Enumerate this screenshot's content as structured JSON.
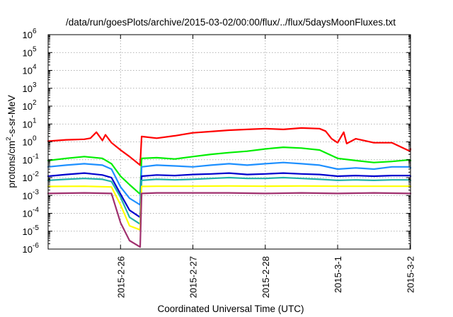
{
  "chart_data": {
    "type": "line",
    "title": "/data/run/goesPlots/archive/2015-03-02/00:00/flux/../flux/5daysMoonFluxes.txt",
    "xlabel": "Coordinated Universal Time (UTC)",
    "ylabel": "protons/cm²-s-sr-MeV",
    "ylabel_parts": {
      "pre": "protons/cm",
      "sup": "2",
      "post": "-s-sr-MeV"
    },
    "xlim": [
      "2015-02-25 00:00",
      "2015-03-02 00:10"
    ],
    "ylim": [
      1e-06,
      1000000.0
    ],
    "yscale": "log",
    "grid": true,
    "x_ticks": [
      {
        "value": "2015-02-26 00:00",
        "label": "2015-2-26"
      },
      {
        "value": "2015-02-27 00:00",
        "label": "2015-2-27"
      },
      {
        "value": "2015-02-28 00:00",
        "label": "2015-2-28"
      },
      {
        "value": "2015-03-01 00:00",
        "label": "2015-3-1"
      },
      {
        "value": "2015-03-02 00:00",
        "label": "2015-3-2"
      }
    ],
    "y_ticks": [
      {
        "value": 1e-06,
        "base": "10",
        "exp": "-6"
      },
      {
        "value": 1e-05,
        "base": "10",
        "exp": "-5"
      },
      {
        "value": 0.0001,
        "base": "10",
        "exp": "-4"
      },
      {
        "value": 0.001,
        "base": "10",
        "exp": "-3"
      },
      {
        "value": 0.01,
        "base": "10",
        "exp": "-2"
      },
      {
        "value": 0.1,
        "base": "10",
        "exp": "-1"
      },
      {
        "value": 1.0,
        "base": "10",
        "exp": "0"
      },
      {
        "value": 10.0,
        "base": "10",
        "exp": "1"
      },
      {
        "value": 100.0,
        "base": "10",
        "exp": "2"
      },
      {
        "value": 1000.0,
        "base": "10",
        "exp": "3"
      },
      {
        "value": 10000.0,
        "base": "10",
        "exp": "4"
      },
      {
        "value": 100000.0,
        "base": "10",
        "exp": "5"
      },
      {
        "value": 1000000.0,
        "base": "10",
        "exp": "6"
      }
    ],
    "series": [
      {
        "color": "#ff0000",
        "x": [
          "2015-02-25 00:00",
          "2015-02-25 06:00",
          "2015-02-25 12:00",
          "2015-02-25 14:00",
          "2015-02-25 16:00",
          "2015-02-25 18:00",
          "2015-02-25 19:00",
          "2015-02-25 21:00",
          "2015-02-26 00:00",
          "2015-02-26 03:00",
          "2015-02-26 06:30",
          "2015-02-26 07:00",
          "2015-02-26 12:00",
          "2015-02-26 18:00",
          "2015-02-27 00:00",
          "2015-02-27 06:00",
          "2015-02-27 12:00",
          "2015-02-27 18:00",
          "2015-02-28 00:00",
          "2015-02-28 06:00",
          "2015-02-28 12:00",
          "2015-02-28 18:00",
          "2015-02-28 20:00",
          "2015-02-28 22:00",
          "2015-03-01 00:00",
          "2015-03-01 02:00",
          "2015-03-01 03:00",
          "2015-03-01 06:00",
          "2015-03-01 12:00",
          "2015-03-01 18:00",
          "2015-03-02 00:00",
          "2015-03-02 00:10"
        ],
        "y": [
          1.1,
          1.3,
          1.4,
          1.6,
          3.5,
          1.2,
          2.5,
          0.9,
          0.35,
          0.15,
          0.05,
          2.0,
          1.6,
          2.2,
          3.2,
          3.8,
          4.5,
          5.0,
          5.5,
          5.0,
          6.0,
          5.5,
          4.0,
          1.5,
          0.9,
          3.5,
          0.8,
          1.5,
          0.9,
          0.9,
          0.3,
          0.4
        ]
      },
      {
        "color": "#00ee00",
        "x": [
          "2015-02-25 00:00",
          "2015-02-25 06:00",
          "2015-02-25 12:00",
          "2015-02-25 18:00",
          "2015-02-25 21:00",
          "2015-02-26 00:00",
          "2015-02-26 03:00",
          "2015-02-26 06:30",
          "2015-02-26 07:00",
          "2015-02-26 12:00",
          "2015-02-26 18:00",
          "2015-02-27 00:00",
          "2015-02-27 06:00",
          "2015-02-27 12:00",
          "2015-02-27 18:00",
          "2015-02-28 00:00",
          "2015-02-28 06:00",
          "2015-02-28 12:00",
          "2015-02-28 18:00",
          "2015-03-01 00:00",
          "2015-03-01 06:00",
          "2015-03-01 12:00",
          "2015-03-01 18:00",
          "2015-03-02 00:00",
          "2015-03-02 00:10"
        ],
        "y": [
          0.09,
          0.12,
          0.15,
          0.12,
          0.06,
          0.012,
          0.004,
          0.0012,
          0.12,
          0.13,
          0.11,
          0.15,
          0.2,
          0.25,
          0.3,
          0.4,
          0.5,
          0.45,
          0.35,
          0.12,
          0.09,
          0.07,
          0.08,
          0.1,
          0.09
        ]
      },
      {
        "color": "#1e90ff",
        "x": [
          "2015-02-25 00:00",
          "2015-02-25 06:00",
          "2015-02-25 12:00",
          "2015-02-25 18:00",
          "2015-02-25 21:00",
          "2015-02-26 00:00",
          "2015-02-26 03:00",
          "2015-02-26 06:30",
          "2015-02-26 07:00",
          "2015-02-26 12:00",
          "2015-02-26 18:00",
          "2015-02-27 00:00",
          "2015-02-27 06:00",
          "2015-02-27 12:00",
          "2015-02-27 18:00",
          "2015-02-28 00:00",
          "2015-02-28 06:00",
          "2015-02-28 12:00",
          "2015-02-28 18:00",
          "2015-03-01 00:00",
          "2015-03-01 06:00",
          "2015-03-01 12:00",
          "2015-03-01 18:00",
          "2015-03-02 00:00",
          "2015-03-02 00:10"
        ],
        "y": [
          0.04,
          0.05,
          0.06,
          0.05,
          0.03,
          0.003,
          0.0007,
          0.0003,
          0.04,
          0.05,
          0.045,
          0.04,
          0.05,
          0.06,
          0.05,
          0.06,
          0.07,
          0.06,
          0.05,
          0.03,
          0.035,
          0.03,
          0.04,
          0.04,
          0.035
        ]
      },
      {
        "color": "#0000cd",
        "x": [
          "2015-02-25 00:00",
          "2015-02-25 06:00",
          "2015-02-25 12:00",
          "2015-02-25 18:00",
          "2015-02-25 21:00",
          "2015-02-26 00:00",
          "2015-02-26 03:00",
          "2015-02-26 06:30",
          "2015-02-26 07:00",
          "2015-02-26 12:00",
          "2015-02-26 18:00",
          "2015-02-27 00:00",
          "2015-02-27 06:00",
          "2015-02-27 12:00",
          "2015-02-27 18:00",
          "2015-02-28 00:00",
          "2015-02-28 06:00",
          "2015-02-28 12:00",
          "2015-02-28 18:00",
          "2015-03-01 00:00",
          "2015-03-01 06:00",
          "2015-03-01 12:00",
          "2015-03-01 18:00",
          "2015-03-02 00:00",
          "2015-03-02 00:10"
        ],
        "y": [
          0.012,
          0.015,
          0.018,
          0.014,
          0.01,
          0.0012,
          0.00015,
          6e-05,
          0.012,
          0.014,
          0.013,
          0.015,
          0.016,
          0.018,
          0.015,
          0.016,
          0.018,
          0.016,
          0.015,
          0.012,
          0.013,
          0.012,
          0.013,
          0.013,
          0.012
        ]
      },
      {
        "color": "#20b2aa",
        "x": [
          "2015-02-25 00:00",
          "2015-02-25 06:00",
          "2015-02-25 12:00",
          "2015-02-25 18:00",
          "2015-02-25 21:00",
          "2015-02-26 00:00",
          "2015-02-26 03:00",
          "2015-02-26 06:30",
          "2015-02-26 07:00",
          "2015-02-26 12:00",
          "2015-02-26 18:00",
          "2015-02-27 00:00",
          "2015-02-27 06:00",
          "2015-02-27 12:00",
          "2015-02-27 18:00",
          "2015-02-28 00:00",
          "2015-02-28 06:00",
          "2015-02-28 12:00",
          "2015-02-28 18:00",
          "2015-03-01 00:00",
          "2015-03-01 06:00",
          "2015-03-01 12:00",
          "2015-03-01 18:00",
          "2015-03-02 00:00",
          "2015-03-02 00:10"
        ],
        "y": [
          0.007,
          0.008,
          0.009,
          0.008,
          0.006,
          0.0008,
          6e-05,
          2.5e-05,
          0.007,
          0.008,
          0.0075,
          0.008,
          0.009,
          0.01,
          0.009,
          0.009,
          0.01,
          0.009,
          0.008,
          0.007,
          0.0075,
          0.007,
          0.0075,
          0.0075,
          0.007
        ]
      },
      {
        "color": "#ffff00",
        "x": [
          "2015-02-25 00:00",
          "2015-02-25 12:00",
          "2015-02-25 21:00",
          "2015-02-26 00:00",
          "2015-02-26 03:00",
          "2015-02-26 06:30",
          "2015-02-26 07:00",
          "2015-02-26 12:00",
          "2015-02-27 00:00",
          "2015-02-27 12:00",
          "2015-02-28 00:00",
          "2015-02-28 12:00",
          "2015-03-01 00:00",
          "2015-03-01 12:00",
          "2015-03-02 00:00",
          "2015-03-02 00:10"
        ],
        "y": [
          0.0032,
          0.0033,
          0.003,
          0.0003,
          2e-05,
          1.2e-05,
          0.0032,
          0.0033,
          0.0033,
          0.0034,
          0.0033,
          0.0034,
          0.0033,
          0.0033,
          0.0033,
          0.0032
        ]
      },
      {
        "color": "#a0306e",
        "x": [
          "2015-02-25 00:00",
          "2015-02-25 12:00",
          "2015-02-25 21:00",
          "2015-02-26 00:00",
          "2015-02-26 03:00",
          "2015-02-26 06:30",
          "2015-02-26 07:00",
          "2015-02-26 12:00",
          "2015-02-27 00:00",
          "2015-02-27 12:00",
          "2015-02-28 00:00",
          "2015-02-28 12:00",
          "2015-03-01 00:00",
          "2015-03-01 12:00",
          "2015-03-02 00:00",
          "2015-03-02 00:10"
        ],
        "y": [
          0.0013,
          0.0014,
          0.0013,
          3e-05,
          3e-06,
          1.3e-06,
          0.0013,
          0.0014,
          0.0014,
          0.0014,
          0.0013,
          0.0014,
          0.0013,
          0.0014,
          0.0013,
          0.0013
        ]
      }
    ]
  }
}
